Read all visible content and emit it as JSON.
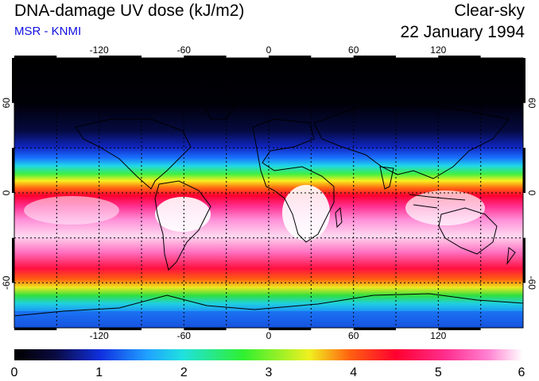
{
  "header": {
    "title": "DNA-damage UV dose (kJ/m2)",
    "subtitle": "MSR - KNMI",
    "condition": "Clear-sky",
    "date": "22 January 1994"
  },
  "map": {
    "lon_ticks": [
      "-120",
      "-60",
      "0",
      "60",
      "120"
    ],
    "lat_ticks_left": [
      "60",
      "0",
      "-60"
    ],
    "lat_ticks_right": [
      "60",
      "0",
      "-60"
    ],
    "gridlines": "dashed",
    "lon_range": [
      -180,
      180
    ],
    "lat_range": [
      -90,
      90
    ]
  },
  "colorbar": {
    "labels": [
      "0",
      "1",
      "2",
      "3",
      "4",
      "5",
      "6"
    ],
    "range": [
      0,
      6
    ],
    "stops": [
      "#000000",
      "#0a1060",
      "#1030e0",
      "#20a0ff",
      "#20e0e0",
      "#30f030",
      "#f0f020",
      "#ff6010",
      "#ff0030",
      "#ff3090",
      "#ff80d0",
      "#ffffff"
    ]
  }
}
